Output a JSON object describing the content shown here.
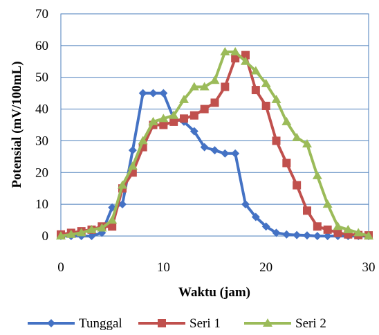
{
  "chart_data": {
    "type": "line",
    "xlabel": "Waktu (jam)",
    "ylabel": "Potensial (mV/100mL)",
    "xlim": [
      0,
      30
    ],
    "ylim": [
      0,
      70
    ],
    "x_ticks": [
      "0",
      "10",
      "20",
      "30"
    ],
    "y_ticks": [
      "0",
      "10",
      "20",
      "30",
      "40",
      "50",
      "60",
      "70"
    ],
    "grid": "horizontal",
    "legend": "bottom",
    "series": [
      {
        "name": "Tunggal",
        "color": "#4472C4",
        "marker": "diamond",
        "x": [
          0,
          1,
          2,
          3,
          4,
          5,
          6,
          7,
          8,
          9,
          10,
          11,
          12,
          13,
          14,
          15,
          16,
          17,
          18,
          19,
          20,
          21,
          22,
          23,
          24,
          25,
          26,
          27,
          28,
          29,
          30
        ],
        "y": [
          0,
          0,
          0,
          0,
          1,
          9,
          10,
          27,
          45,
          45,
          45,
          37,
          36,
          33,
          28,
          27,
          26,
          26,
          10,
          6,
          3,
          1,
          0.5,
          0.3,
          0.2,
          0,
          0,
          0,
          0,
          0,
          0
        ]
      },
      {
        "name": "Seri 1",
        "color": "#C0504D",
        "marker": "square",
        "x": [
          0,
          1,
          2,
          3,
          4,
          5,
          6,
          7,
          8,
          9,
          10,
          11,
          12,
          13,
          14,
          15,
          16,
          17,
          18,
          19,
          20,
          21,
          22,
          23,
          24,
          25,
          26,
          27,
          28,
          29,
          30
        ],
        "y": [
          0.5,
          1,
          1.5,
          2,
          3,
          3,
          15,
          20,
          28,
          35,
          35,
          36,
          37,
          38,
          40,
          42,
          47,
          56,
          57,
          46,
          41,
          30,
          23,
          16,
          8,
          3,
          2,
          1,
          0.5,
          0.3,
          0.2
        ]
      },
      {
        "name": "Seri 2",
        "color": "#9BBB59",
        "marker": "triangle",
        "x": [
          0,
          1,
          2,
          3,
          4,
          5,
          6,
          7,
          8,
          9,
          10,
          11,
          12,
          13,
          14,
          15,
          16,
          17,
          18,
          19,
          20,
          21,
          22,
          23,
          24,
          25,
          26,
          27,
          28,
          29,
          30
        ],
        "y": [
          0,
          0.5,
          1,
          2,
          2.5,
          5,
          16,
          22,
          30,
          36,
          37,
          38,
          43,
          47,
          47,
          49,
          58,
          58,
          55,
          52,
          48,
          43,
          36,
          31,
          29,
          19,
          10,
          3,
          2,
          1,
          0
        ]
      }
    ]
  }
}
